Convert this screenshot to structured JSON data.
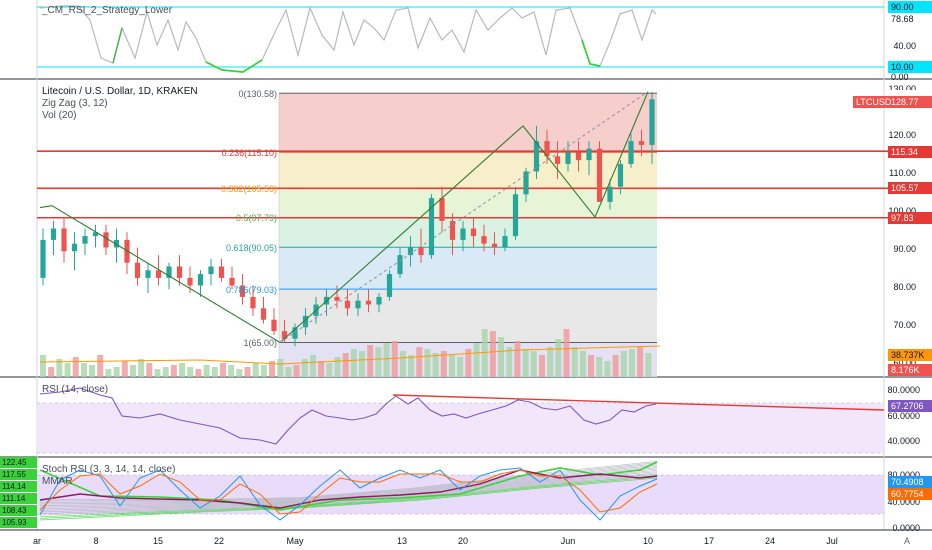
{
  "top_indicator": {
    "title": "_CM_RSI_2_Strategy_Lower",
    "scale": [
      "40.00"
    ],
    "badges": [
      {
        "value": "90.00",
        "bg": "#00e5ff",
        "fg": "#131722"
      },
      {
        "value": "78.68",
        "bg": "#ffffff",
        "fg": "#131722"
      },
      {
        "value": "10.00",
        "bg": "#00e5ff",
        "fg": "#131722"
      },
      {
        "value": "0.00",
        "bg": "#ffffff",
        "fg": "#131722"
      }
    ]
  },
  "main": {
    "title": "Litecoin / U.S. Dollar, 1D, KRAKEN",
    "indicators": [
      "Zig Zag (3, 12)",
      "Vol (20)"
    ],
    "price_scale": [
      "120.00",
      "110.00",
      "100.00",
      "90.00",
      "80.00",
      "70.00",
      "60.00"
    ],
    "top_scale_partial": "130.00",
    "symbol_badge": {
      "label": "LTCUSD",
      "value": "128.77",
      "color": "#ef5350"
    },
    "level_badges": [
      {
        "value": "115.34",
        "color": "#e53935"
      },
      {
        "value": "105.57",
        "color": "#e53935"
      },
      {
        "value": "97.83",
        "color": "#e53935"
      }
    ],
    "volume_badges": [
      {
        "value": "38.737K",
        "color": "#ff9800"
      },
      {
        "value": "8.176K",
        "color": "#ef5350"
      }
    ],
    "fib_levels": [
      {
        "label": "0(130.58)",
        "price": 130.58,
        "color": "#5d606b",
        "fill": "#f4c7c3"
      },
      {
        "label": "0.236(115.10)",
        "price": 115.1,
        "color": "#e53935",
        "fill": "#f6ecc0"
      },
      {
        "label": "0.382(105.53)",
        "price": 105.53,
        "color": "#f39c12",
        "fill": "#e3f2cf"
      },
      {
        "label": "0.5(97.79)",
        "price": 97.79,
        "color": "#4caf50",
        "fill": "#d3f0df"
      },
      {
        "label": "0.618(90.05)",
        "price": 90.05,
        "color": "#26a69a",
        "fill": "#d2e6f4"
      },
      {
        "label": "0.786(79.03)",
        "price": 79.03,
        "color": "#2196f3",
        "fill": "#e4e4e4"
      },
      {
        "label": "1(65.00)",
        "price": 65.0,
        "color": "#5d606b",
        "fill": "#e1dcf3"
      }
    ]
  },
  "rsi": {
    "title": "RSI (14, close)",
    "scale": [
      "80.0000",
      "60.0000",
      "40.0000"
    ],
    "badge": {
      "value": "67.2706",
      "color": "#7e57c2"
    }
  },
  "stoch": {
    "title": "Stoch RSI (3, 3, 14, 14, close)",
    "subtitle": "MMAR",
    "scale": [
      "80.0000",
      "60.0000",
      "40.0000",
      "20.0000",
      "0.0000"
    ],
    "badges": [
      {
        "value": "70.4908",
        "color": "#2196f3"
      },
      {
        "value": "60.7754",
        "color": "#ff6d00"
      }
    ],
    "left_badges": [
      "122.45",
      "117.55",
      "114.14",
      "111.14",
      "108.43",
      "105.93"
    ]
  },
  "time_axis": {
    "ticks": [
      "ar",
      "8",
      "15",
      "22",
      "May",
      "13",
      "20",
      "Jun",
      "10",
      "17",
      "24",
      "Jul"
    ],
    "auto_label": "A"
  }
}
